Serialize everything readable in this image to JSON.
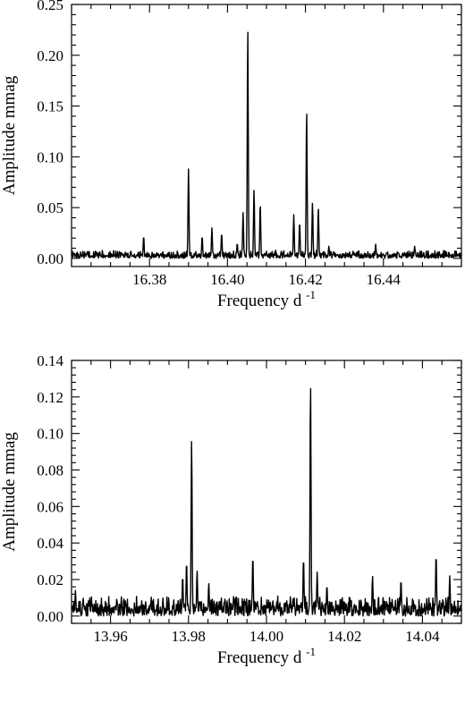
{
  "chart_data": [
    {
      "type": "line",
      "xlabel": "Frequency d",
      "xlabel_sup": "-1",
      "ylabel": "Amplitude mmag",
      "xlim": [
        16.36,
        16.46
      ],
      "ylim": [
        -0.008,
        0.25
      ],
      "xticks": [
        16.38,
        16.4,
        16.42,
        16.44
      ],
      "xtick_labels": [
        "16.38",
        "16.40",
        "16.42",
        "16.44"
      ],
      "yticks": [
        0.0,
        0.05,
        0.1,
        0.15,
        0.2,
        0.25
      ],
      "ytick_labels": [
        "0.00",
        "0.05",
        "0.10",
        "0.15",
        "0.20",
        "0.25"
      ],
      "grid": false,
      "noise_seed": 7,
      "noise_level": 0.008,
      "peaks": [
        {
          "x": 16.3785,
          "y": 0.022
        },
        {
          "x": 16.39,
          "y": 0.088
        },
        {
          "x": 16.3935,
          "y": 0.022
        },
        {
          "x": 16.396,
          "y": 0.03
        },
        {
          "x": 16.3985,
          "y": 0.025
        },
        {
          "x": 16.4025,
          "y": 0.015
        },
        {
          "x": 16.404,
          "y": 0.045
        },
        {
          "x": 16.4052,
          "y": 0.226
        },
        {
          "x": 16.4068,
          "y": 0.068
        },
        {
          "x": 16.4084,
          "y": 0.054
        },
        {
          "x": 16.417,
          "y": 0.043
        },
        {
          "x": 16.4185,
          "y": 0.036
        },
        {
          "x": 16.4203,
          "y": 0.147
        },
        {
          "x": 16.4218,
          "y": 0.055
        },
        {
          "x": 16.4233,
          "y": 0.05
        },
        {
          "x": 16.426,
          "y": 0.012
        },
        {
          "x": 16.438,
          "y": 0.014
        },
        {
          "x": 16.448,
          "y": 0.012
        }
      ]
    },
    {
      "type": "line",
      "xlabel": "Frequency d",
      "xlabel_sup": "-1",
      "ylabel": "Amplitude mmag",
      "xlim": [
        13.95,
        14.05
      ],
      "ylim": [
        -0.004,
        0.14
      ],
      "xticks": [
        13.96,
        13.98,
        14.0,
        14.02,
        14.04
      ],
      "xtick_labels": [
        "13.96",
        "13.98",
        "14.00",
        "14.02",
        "14.04"
      ],
      "yticks": [
        0.0,
        0.02,
        0.04,
        0.06,
        0.08,
        0.1,
        0.12,
        0.14
      ],
      "ytick_labels": [
        "0.00",
        "0.02",
        "0.04",
        "0.06",
        "0.08",
        "0.10",
        "0.12",
        "0.14"
      ],
      "grid": false,
      "noise_seed": 13,
      "noise_level": 0.011,
      "peaks": [
        {
          "x": 13.951,
          "y": 0.014
        },
        {
          "x": 13.9785,
          "y": 0.022
        },
        {
          "x": 13.9795,
          "y": 0.03
        },
        {
          "x": 13.9808,
          "y": 0.097
        },
        {
          "x": 13.9822,
          "y": 0.025
        },
        {
          "x": 13.9852,
          "y": 0.018
        },
        {
          "x": 13.9965,
          "y": 0.033
        },
        {
          "x": 14.0095,
          "y": 0.032
        },
        {
          "x": 14.0113,
          "y": 0.129
        },
        {
          "x": 14.013,
          "y": 0.024
        },
        {
          "x": 14.0155,
          "y": 0.017
        },
        {
          "x": 14.0272,
          "y": 0.022
        },
        {
          "x": 14.0345,
          "y": 0.02
        },
        {
          "x": 14.0435,
          "y": 0.034
        },
        {
          "x": 14.047,
          "y": 0.022
        }
      ]
    }
  ]
}
